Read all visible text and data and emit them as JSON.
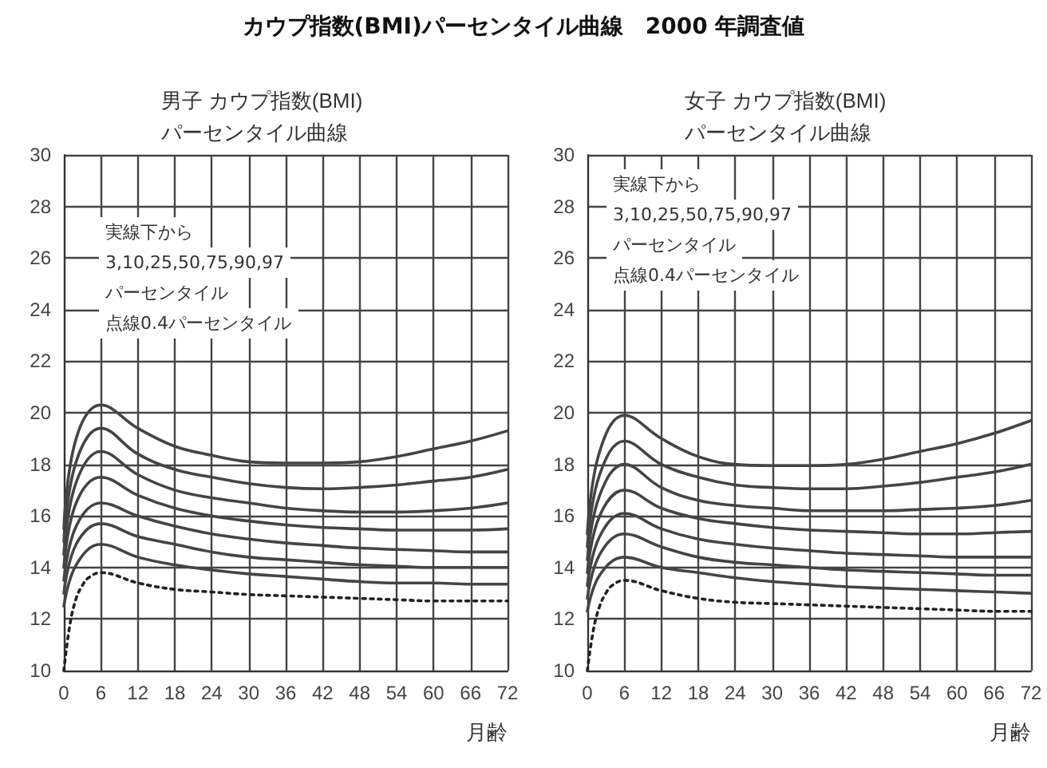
{
  "chart_data": [
    {
      "type": "line",
      "title": "カウプ指数(BMI)パーセンタイル曲線　2000 年調査値",
      "subtitle": "男子 カウプ指数(BMI)\nパーセンタイル曲線",
      "xlabel": "月齢",
      "annotations": [
        "実線下から",
        "3,10,25,50,75,90,97",
        "パーセンタイル",
        "点線0.4パーセンタイル"
      ],
      "x": [
        0,
        2,
        6,
        12,
        18,
        24,
        30,
        36,
        42,
        48,
        54,
        60,
        66,
        72
      ],
      "series": [
        {
          "color": "#444444",
          "line_style": "solid",
          "values": [
            12.5,
            14.1,
            14.9,
            14.4,
            14.1,
            13.9,
            13.75,
            13.65,
            13.55,
            13.45,
            13.4,
            13.4,
            13.35,
            13.35
          ]
        },
        {
          "color": "#444444",
          "line_style": "solid",
          "values": [
            13.0,
            14.9,
            15.7,
            15.2,
            14.9,
            14.6,
            14.4,
            14.3,
            14.2,
            14.1,
            14.05,
            14.0,
            14.0,
            14.0
          ]
        },
        {
          "color": "#444444",
          "line_style": "solid",
          "values": [
            13.5,
            15.6,
            16.5,
            16.0,
            15.6,
            15.3,
            15.1,
            14.95,
            14.85,
            14.75,
            14.7,
            14.65,
            14.6,
            14.6
          ]
        },
        {
          "color": "#444444",
          "line_style": "solid",
          "values": [
            14.0,
            16.5,
            17.5,
            16.8,
            16.3,
            16.0,
            15.8,
            15.65,
            15.55,
            15.5,
            15.45,
            15.45,
            15.45,
            15.5
          ]
        },
        {
          "color": "#444444",
          "line_style": "solid",
          "values": [
            14.5,
            17.3,
            18.5,
            17.6,
            17.0,
            16.7,
            16.5,
            16.3,
            16.2,
            16.15,
            16.15,
            16.2,
            16.3,
            16.5
          ]
        },
        {
          "color": "#444444",
          "line_style": "solid",
          "values": [
            15.0,
            18.1,
            19.4,
            18.4,
            17.8,
            17.5,
            17.25,
            17.1,
            17.05,
            17.1,
            17.2,
            17.35,
            17.5,
            17.8
          ]
        },
        {
          "color": "#444444",
          "line_style": "solid",
          "values": [
            15.5,
            19.0,
            20.3,
            19.4,
            18.7,
            18.35,
            18.1,
            18.05,
            18.05,
            18.1,
            18.3,
            18.6,
            18.9,
            19.3
          ]
        },
        {
          "color": "#222222",
          "line_style": "dotted",
          "x": [
            0,
            1,
            2,
            3,
            4,
            6,
            12,
            18,
            24,
            30,
            36,
            42,
            48,
            54,
            60,
            66,
            72
          ],
          "values": [
            10.0,
            11.8,
            12.8,
            13.3,
            13.6,
            13.8,
            13.4,
            13.15,
            13.05,
            12.95,
            12.9,
            12.85,
            12.8,
            12.75,
            12.7,
            12.7,
            12.7
          ]
        }
      ],
      "xlim": [
        0,
        72
      ],
      "xticks": [
        0,
        6,
        12,
        18,
        24,
        30,
        36,
        42,
        48,
        54,
        60,
        66,
        72
      ],
      "ylim": [
        10,
        30
      ],
      "yticks": [
        10,
        12,
        14,
        16,
        18,
        20,
        22,
        24,
        26,
        28,
        30
      ],
      "grid": true,
      "marker": "none"
    },
    {
      "type": "line",
      "subtitle": "女子 カウプ指数(BMI)\nパーセンタイル曲線",
      "xlabel": "月齢",
      "annotations": [
        "実線下から",
        "3,10,25,50,75,90,97",
        "パーセンタイル",
        "点線0.4パーセンタイル"
      ],
      "x": [
        0,
        2,
        6,
        12,
        18,
        24,
        30,
        36,
        42,
        48,
        54,
        60,
        66,
        72
      ],
      "series": [
        {
          "color": "#444444",
          "line_style": "solid",
          "values": [
            12.3,
            13.7,
            14.4,
            14.0,
            13.8,
            13.6,
            13.45,
            13.35,
            13.25,
            13.2,
            13.15,
            13.1,
            13.05,
            13.0
          ]
        },
        {
          "color": "#444444",
          "line_style": "solid",
          "values": [
            12.8,
            14.5,
            15.3,
            14.8,
            14.4,
            14.2,
            14.1,
            14.0,
            13.9,
            13.85,
            13.8,
            13.75,
            13.7,
            13.7
          ]
        },
        {
          "color": "#444444",
          "line_style": "solid",
          "values": [
            13.3,
            15.2,
            16.1,
            15.5,
            15.1,
            14.9,
            14.75,
            14.65,
            14.55,
            14.5,
            14.45,
            14.4,
            14.4,
            14.4
          ]
        },
        {
          "color": "#444444",
          "line_style": "solid",
          "values": [
            13.8,
            16.0,
            17.0,
            16.3,
            15.9,
            15.7,
            15.55,
            15.45,
            15.4,
            15.35,
            15.3,
            15.3,
            15.35,
            15.4
          ]
        },
        {
          "color": "#444444",
          "line_style": "solid",
          "values": [
            14.3,
            16.8,
            18.0,
            17.1,
            16.6,
            16.4,
            16.3,
            16.2,
            16.2,
            16.2,
            16.25,
            16.3,
            16.4,
            16.6
          ]
        },
        {
          "color": "#444444",
          "line_style": "solid",
          "values": [
            14.8,
            17.6,
            18.9,
            18.0,
            17.5,
            17.2,
            17.1,
            17.05,
            17.05,
            17.15,
            17.3,
            17.5,
            17.7,
            18.0
          ]
        },
        {
          "color": "#444444",
          "line_style": "solid",
          "values": [
            15.3,
            18.5,
            19.9,
            19.0,
            18.3,
            18.0,
            17.95,
            17.95,
            18.0,
            18.2,
            18.5,
            18.8,
            19.2,
            19.7
          ]
        },
        {
          "color": "#222222",
          "line_style": "dotted",
          "x": [
            0,
            1,
            2,
            3,
            4,
            6,
            12,
            18,
            24,
            30,
            36,
            42,
            48,
            54,
            60,
            66,
            72
          ],
          "values": [
            10.0,
            11.6,
            12.5,
            13.0,
            13.3,
            13.5,
            13.1,
            12.8,
            12.65,
            12.6,
            12.55,
            12.5,
            12.45,
            12.4,
            12.35,
            12.3,
            12.3
          ]
        }
      ],
      "xlim": [
        0,
        72
      ],
      "xticks": [
        0,
        6,
        12,
        18,
        24,
        30,
        36,
        42,
        48,
        54,
        60,
        66,
        72
      ],
      "ylim": [
        10,
        30
      ],
      "yticks": [
        10,
        12,
        14,
        16,
        18,
        20,
        22,
        24,
        26,
        28,
        30
      ],
      "grid": true,
      "marker": "none"
    }
  ]
}
